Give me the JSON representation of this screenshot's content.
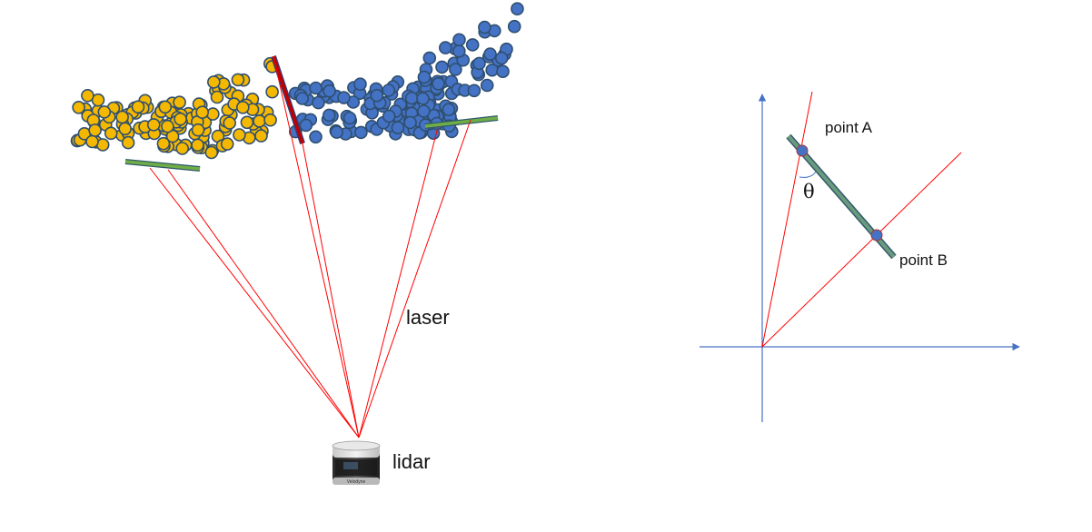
{
  "labels": {
    "laser": "laser",
    "lidar": "lidar",
    "point_a": "point A",
    "point_b": "point B",
    "angle": "θ"
  },
  "colors": {
    "yellow_point": "#f5b800",
    "blue_point": "#4472c4",
    "point_stroke": "#2f4f6f",
    "laser_ray": "#ff0000",
    "segment_green": "#70ad47",
    "segment_red": "#c00000",
    "axis": "#4472c4",
    "ab_segment_fill": "#6b9a7e",
    "ab_segment_edge": "#2e5a6b"
  },
  "icons": {
    "lidar_sensor": "velodyne-lidar-icon"
  }
}
